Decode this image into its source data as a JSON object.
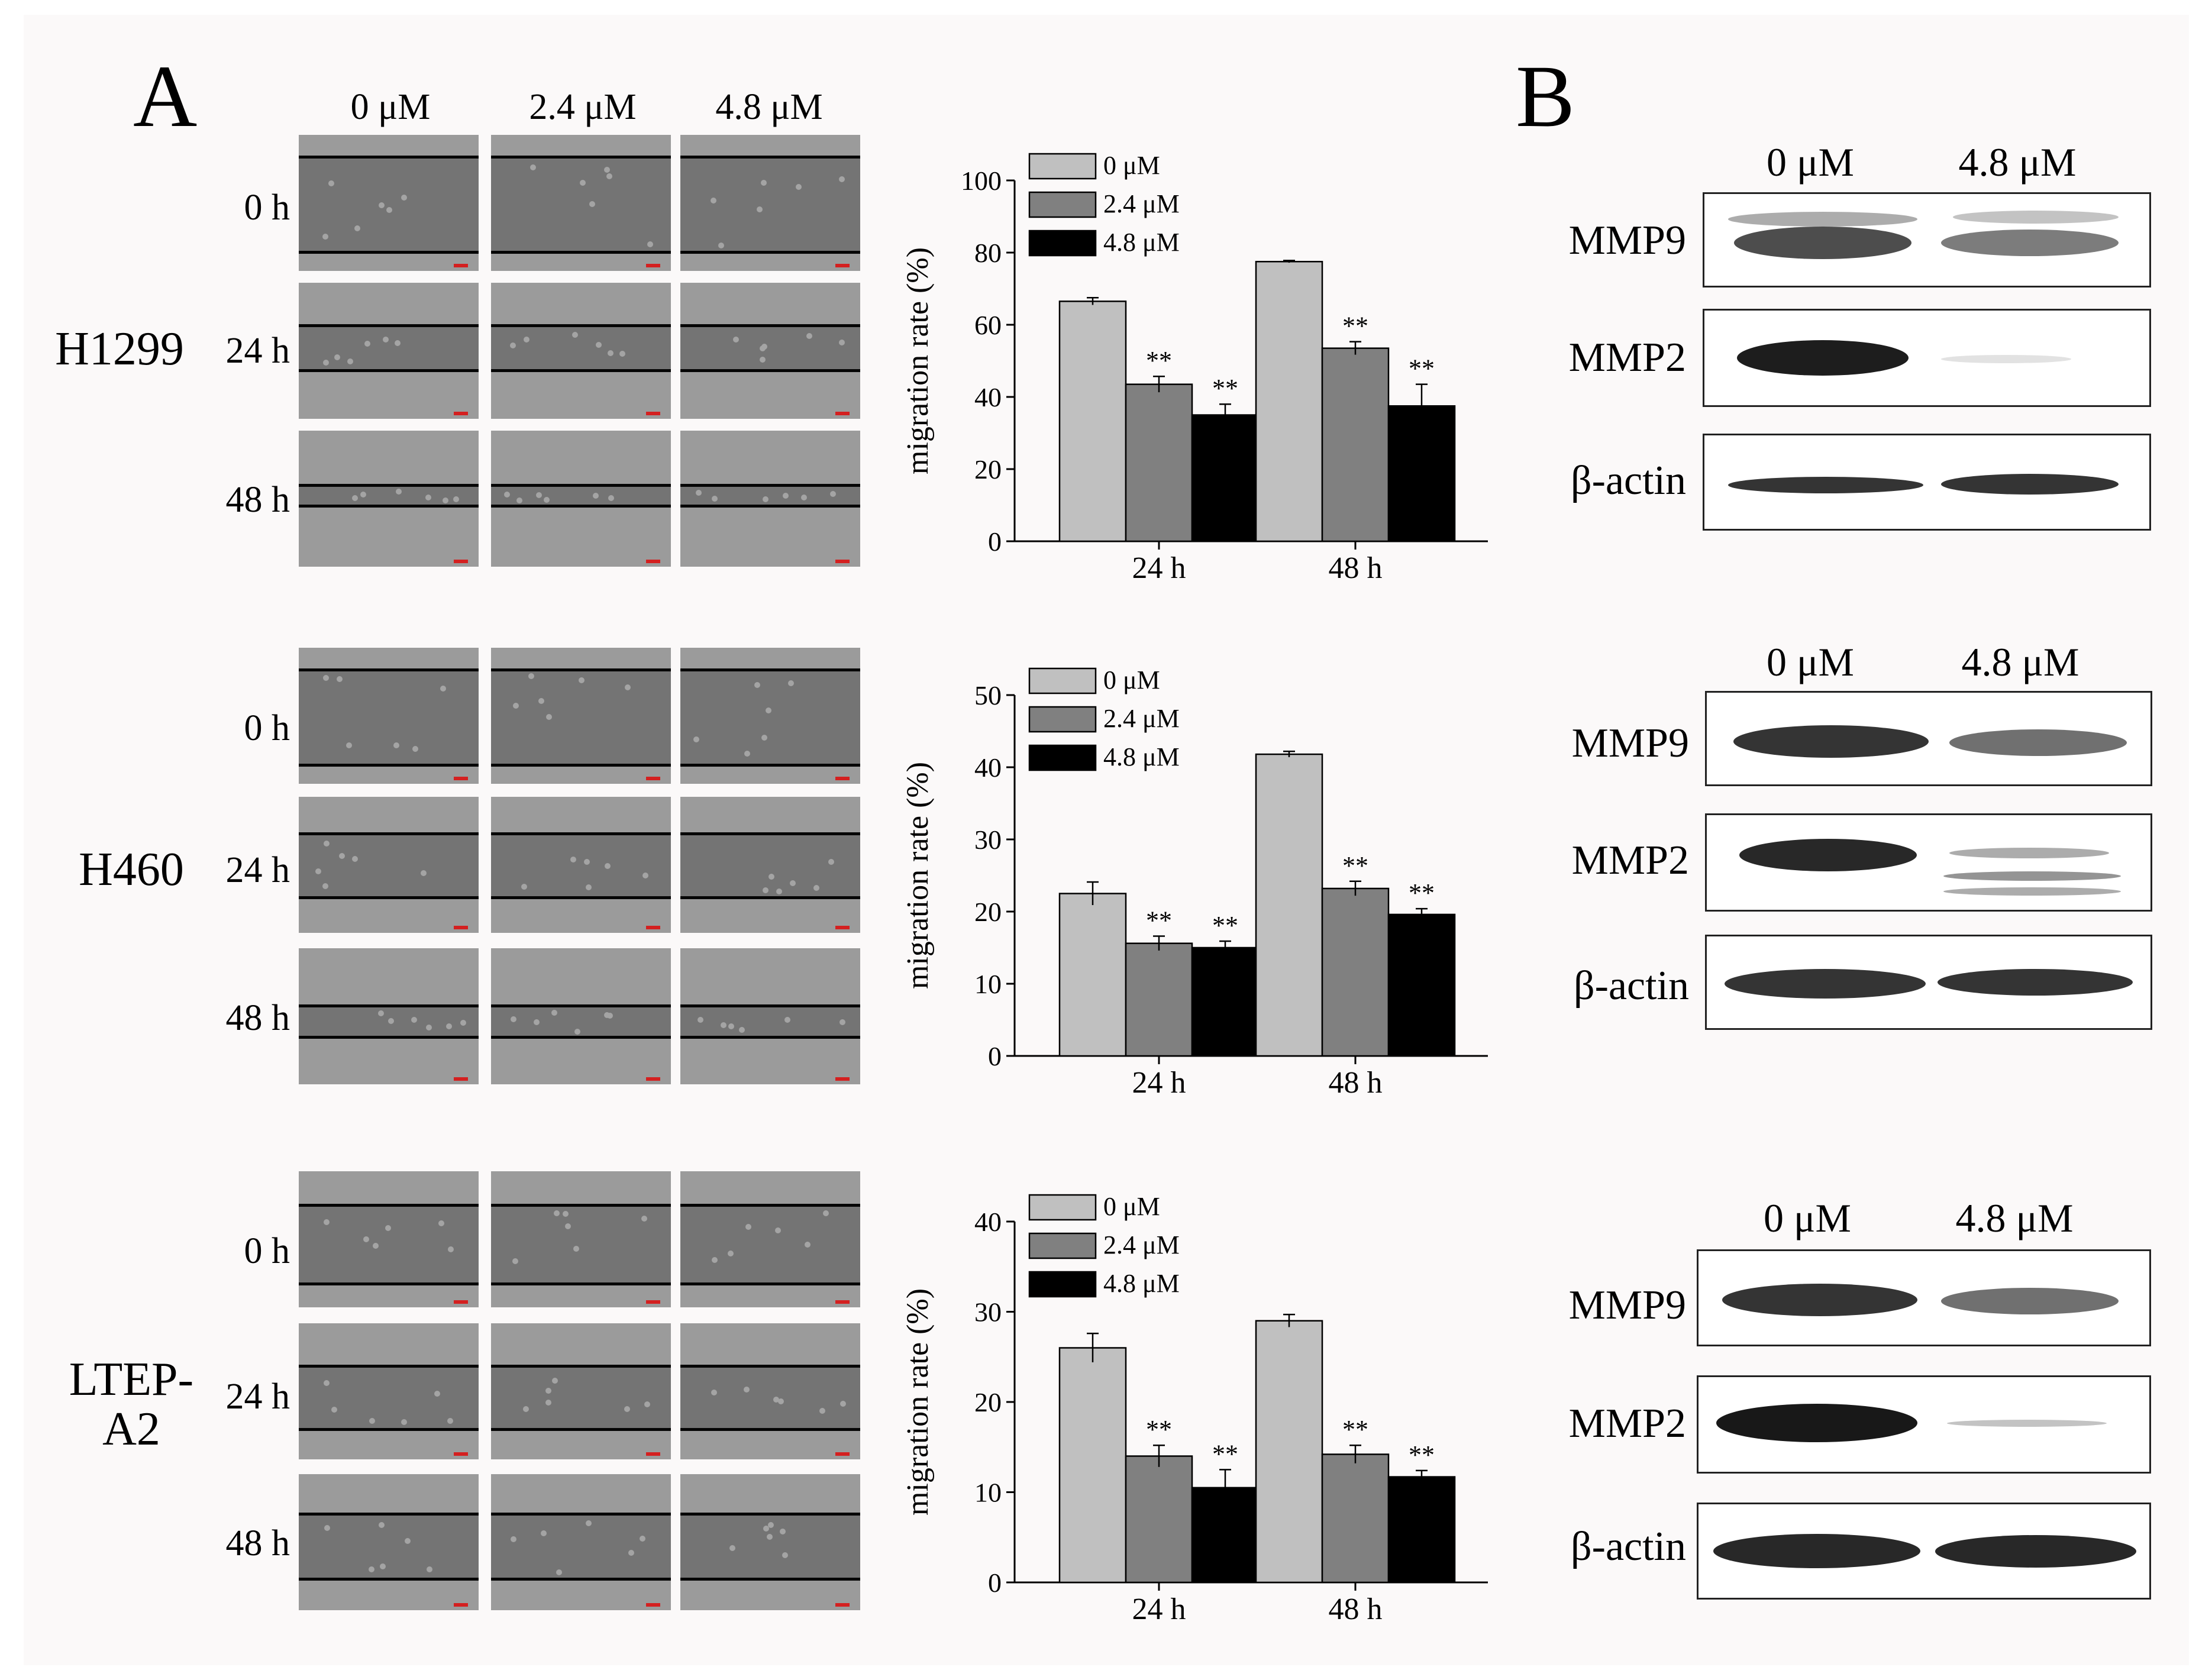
{
  "panel_labels": {
    "a": "A",
    "b": "B"
  },
  "treatments": [
    "0 μM",
    "2.4 μM",
    "4.8 μM"
  ],
  "timepoints": [
    "0 h",
    "24 h",
    "48 h"
  ],
  "cell_lines": [
    {
      "name": "H1299"
    },
    {
      "name": "H460"
    },
    {
      "name": "LTEP-\nA2"
    }
  ],
  "western": {
    "treatments": [
      "0 μM",
      "4.8 μM"
    ],
    "proteins": [
      "MMP9",
      "MMP2",
      "β-actin"
    ]
  },
  "colors": {
    "c0": "#c0c0c0",
    "c24": "#808080",
    "c48": "#000000"
  },
  "chart_data": [
    {
      "type": "bar",
      "categories": [
        "24 h",
        "48 h"
      ],
      "ylabel": "migration rate (%)",
      "ylim": [
        0,
        100
      ],
      "yticks": [
        0,
        20,
        40,
        60,
        80,
        100
      ],
      "series": [
        {
          "name": "0 μM",
          "values": [
            66.5,
            77.5
          ],
          "errors": [
            1,
            0.3
          ],
          "sig": [
            "",
            ""
          ]
        },
        {
          "name": "2.4 μM",
          "values": [
            43.5,
            53.5
          ],
          "errors": [
            2.2,
            1.8
          ],
          "sig": [
            "**",
            "**"
          ]
        },
        {
          "name": "4.8 μM",
          "values": [
            35,
            37.5
          ],
          "errors": [
            3,
            6
          ],
          "sig": [
            "**",
            "**"
          ]
        }
      ]
    },
    {
      "type": "bar",
      "categories": [
        "24 h",
        "48 h"
      ],
      "ylabel": "migration rate (%)",
      "ylim": [
        0,
        50
      ],
      "yticks": [
        0,
        10,
        20,
        30,
        40,
        50
      ],
      "series": [
        {
          "name": "0 μM",
          "values": [
            22.5,
            41.8
          ],
          "errors": [
            1.6,
            0.4
          ],
          "sig": [
            "",
            ""
          ]
        },
        {
          "name": "2.4 μM",
          "values": [
            15.6,
            23.2
          ],
          "errors": [
            1,
            1
          ],
          "sig": [
            "**",
            "**"
          ]
        },
        {
          "name": "4.8 μM",
          "values": [
            15,
            19.6
          ],
          "errors": [
            0.9,
            0.8
          ],
          "sig": [
            "**",
            "**"
          ]
        }
      ]
    },
    {
      "type": "bar",
      "categories": [
        "24 h",
        "48 h"
      ],
      "ylabel": "migration rate (%)",
      "ylim": [
        0,
        40
      ],
      "yticks": [
        0,
        10,
        20,
        30,
        40
      ],
      "series": [
        {
          "name": "0 μM",
          "values": [
            26,
            29
          ],
          "errors": [
            1.6,
            0.7
          ],
          "sig": [
            "",
            ""
          ]
        },
        {
          "name": "2.4 μM",
          "values": [
            14,
            14.2
          ],
          "errors": [
            1.2,
            1
          ],
          "sig": [
            "**",
            "**"
          ]
        },
        {
          "name": "4.8 μM",
          "values": [
            10.5,
            11.7
          ],
          "errors": [
            2,
            0.7
          ],
          "sig": [
            "**",
            "**"
          ]
        }
      ]
    }
  ]
}
